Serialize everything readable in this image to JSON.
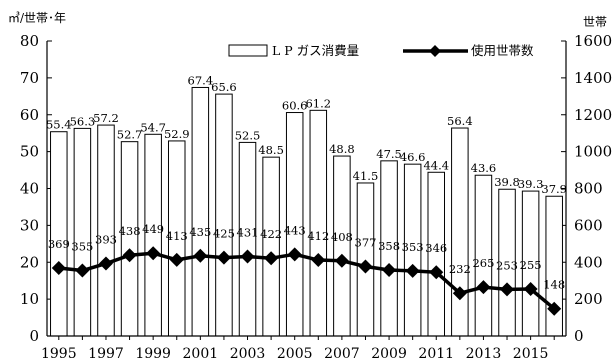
{
  "chart_data": {
    "type": "bar",
    "title": "",
    "left_unit": "㎥/世帯･年",
    "right_unit": "世帯",
    "x": [
      1995,
      1996,
      1997,
      1998,
      1999,
      2000,
      2001,
      2002,
      2003,
      2004,
      2005,
      2006,
      2007,
      2008,
      2009,
      2010,
      2011,
      2012,
      2013,
      2014,
      2015,
      2016
    ],
    "x_tick_labels": [
      "1995",
      "1997",
      "1999",
      "2001",
      "2003",
      "2005",
      "2007",
      "2009",
      "2011",
      "2013",
      "2015"
    ],
    "left_axis": {
      "min": 0,
      "max": 80,
      "ticks": [
        0,
        10,
        20,
        30,
        40,
        50,
        60,
        70,
        80
      ]
    },
    "right_axis": {
      "min": 0,
      "max": 1600,
      "ticks": [
        0,
        200,
        400,
        600,
        800,
        1000,
        1200,
        1400,
        1600
      ]
    },
    "grid": false,
    "legend_position": "top-right",
    "series": [
      {
        "name": "L P ガス消費量",
        "kind": "bar",
        "axis": "left",
        "color": "#ffffff",
        "values": [
          55.4,
          56.3,
          57.2,
          52.7,
          54.7,
          52.9,
          67.4,
          65.6,
          52.5,
          48.5,
          60.6,
          61.2,
          48.8,
          41.5,
          47.5,
          46.6,
          44.4,
          56.4,
          43.6,
          39.8,
          39.3,
          37.9
        ],
        "labels": [
          "55.4",
          "56.3",
          "57.2",
          "52.7",
          "54.7",
          "52.9",
          "67.4",
          "65.6",
          "52.5",
          "48.5",
          "60.6",
          "61.2",
          "48.8",
          "41.5",
          "47.5",
          "46.6",
          "44.4",
          "56.4",
          "43.6",
          "39.8",
          "39.3",
          "37.9"
        ]
      },
      {
        "name": "使用世帯数",
        "kind": "line",
        "axis": "right",
        "color": "#000000",
        "values": [
          369,
          355,
          393,
          438,
          449,
          413,
          435,
          425,
          431,
          422,
          443,
          412,
          408,
          377,
          358,
          353,
          346,
          232,
          265,
          253,
          255,
          148
        ],
        "labels": [
          "369",
          "355",
          "393",
          "438",
          "449",
          "413",
          "435",
          "425",
          "431",
          "422",
          "443",
          "412",
          "408",
          "377",
          "358",
          "353",
          "346",
          "232",
          "265",
          "253",
          "255",
          "148"
        ]
      }
    ]
  }
}
